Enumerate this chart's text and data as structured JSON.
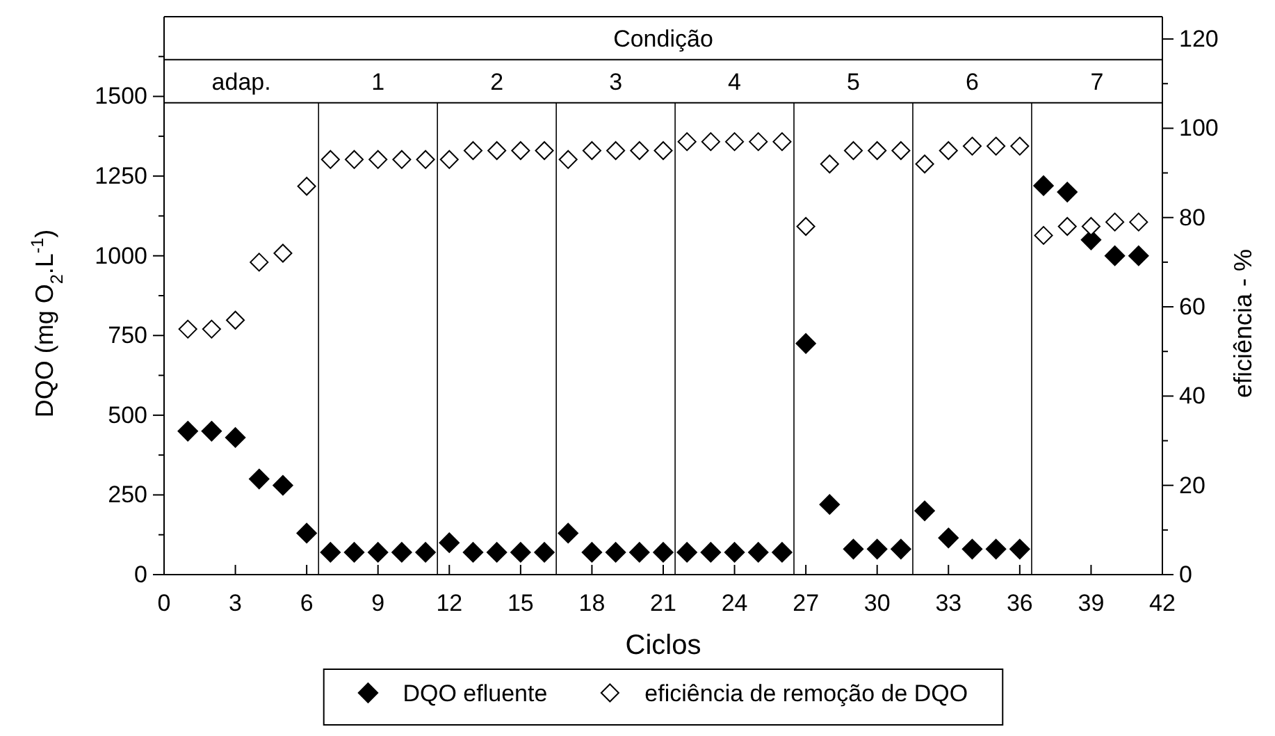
{
  "chart_data": {
    "type": "scatter",
    "xlabel": "Ciclos",
    "ylabel": "DQO  (mg O$_{2}$.L$^{-1}$)",
    "y2label": "eficiência - %",
    "x": [
      1,
      2,
      3,
      4,
      5,
      6,
      7,
      8,
      9,
      10,
      11,
      12,
      13,
      14,
      15,
      16,
      17,
      18,
      19,
      20,
      21,
      22,
      23,
      24,
      25,
      26,
      27,
      28,
      29,
      30,
      31,
      32,
      33,
      34,
      35,
      36,
      37,
      38,
      39,
      40,
      41
    ],
    "series": [
      {
        "name": "DQO efluente",
        "color": "#000000",
        "marker": "diamond",
        "values": [
          450,
          450,
          430,
          300,
          280,
          130,
          70,
          70,
          70,
          70,
          70,
          100,
          70,
          70,
          70,
          70,
          130,
          70,
          70,
          70,
          70,
          70,
          70,
          70,
          70,
          70,
          725,
          220,
          80,
          80,
          80,
          200,
          115,
          80,
          80,
          80,
          1220,
          1200,
          1050,
          1000,
          1000
        ]
      },
      {
        "name": "eficiência de remoção de DQO",
        "color": "#000000",
        "marker": "diamond",
        "axis": "y2",
        "values": [
          55,
          55,
          57,
          70,
          72,
          87,
          93,
          93,
          93,
          93,
          93,
          93,
          95,
          95,
          95,
          95,
          93,
          95,
          95,
          95,
          95,
          97,
          97,
          97,
          97,
          97,
          78,
          92,
          95,
          95,
          95,
          92,
          95,
          96,
          96,
          96,
          76,
          78,
          78,
          79,
          79
        ]
      }
    ],
    "xlim": [
      0,
      42
    ],
    "xticks": [
      0,
      3,
      6,
      9,
      12,
      15,
      18,
      21,
      24,
      27,
      30,
      33,
      36,
      39,
      42
    ],
    "ylim": [
      0,
      1750
    ],
    "yticks": [
      0,
      {
        "value": 125,
        "label": null
      },
      250,
      {
        "value": 375,
        "label": null
      },
      500,
      {
        "value": 625,
        "label": null
      },
      750,
      {
        "value": 875,
        "label": null
      },
      1000,
      {
        "value": 1125,
        "label": null
      },
      1250,
      {
        "value": 1375,
        "label": null
      },
      1500,
      {
        "value": 1625,
        "label": null
      }
    ],
    "y2lim": [
      0,
      125
    ],
    "y2ticks": [
      0,
      {
        "value": 10,
        "label": null
      },
      20,
      {
        "value": 30,
        "label": null
      },
      40,
      {
        "value": 50,
        "label": null
      },
      60,
      {
        "value": 70,
        "label": null
      },
      80,
      {
        "value": 90,
        "label": null
      },
      100,
      {
        "value": 110,
        "label": null
      },
      120
    ],
    "annotations": [
      "Condição",
      "adap.",
      "1",
      "2",
      "3",
      "4",
      "5",
      "6",
      "7"
    ],
    "ref_lines": [
      {
        "axis": "y",
        "value": 1615,
        "label": null
      },
      {
        "axis": "y",
        "value": 1480,
        "label": null
      },
      {
        "axis": "x",
        "value": 6.5,
        "label": null
      },
      {
        "axis": "x",
        "value": 11.5,
        "label": null
      },
      {
        "axis": "x",
        "value": 16.5,
        "label": null
      },
      {
        "axis": "x",
        "value": 21.5,
        "label": null
      },
      {
        "axis": "x",
        "value": 26.5,
        "label": null
      },
      {
        "axis": "x",
        "value": 31.5,
        "label": null
      },
      {
        "axis": "x",
        "value": 36.5,
        "label": null
      }
    ],
    "legend": "bottom",
    "grid": false
  }
}
